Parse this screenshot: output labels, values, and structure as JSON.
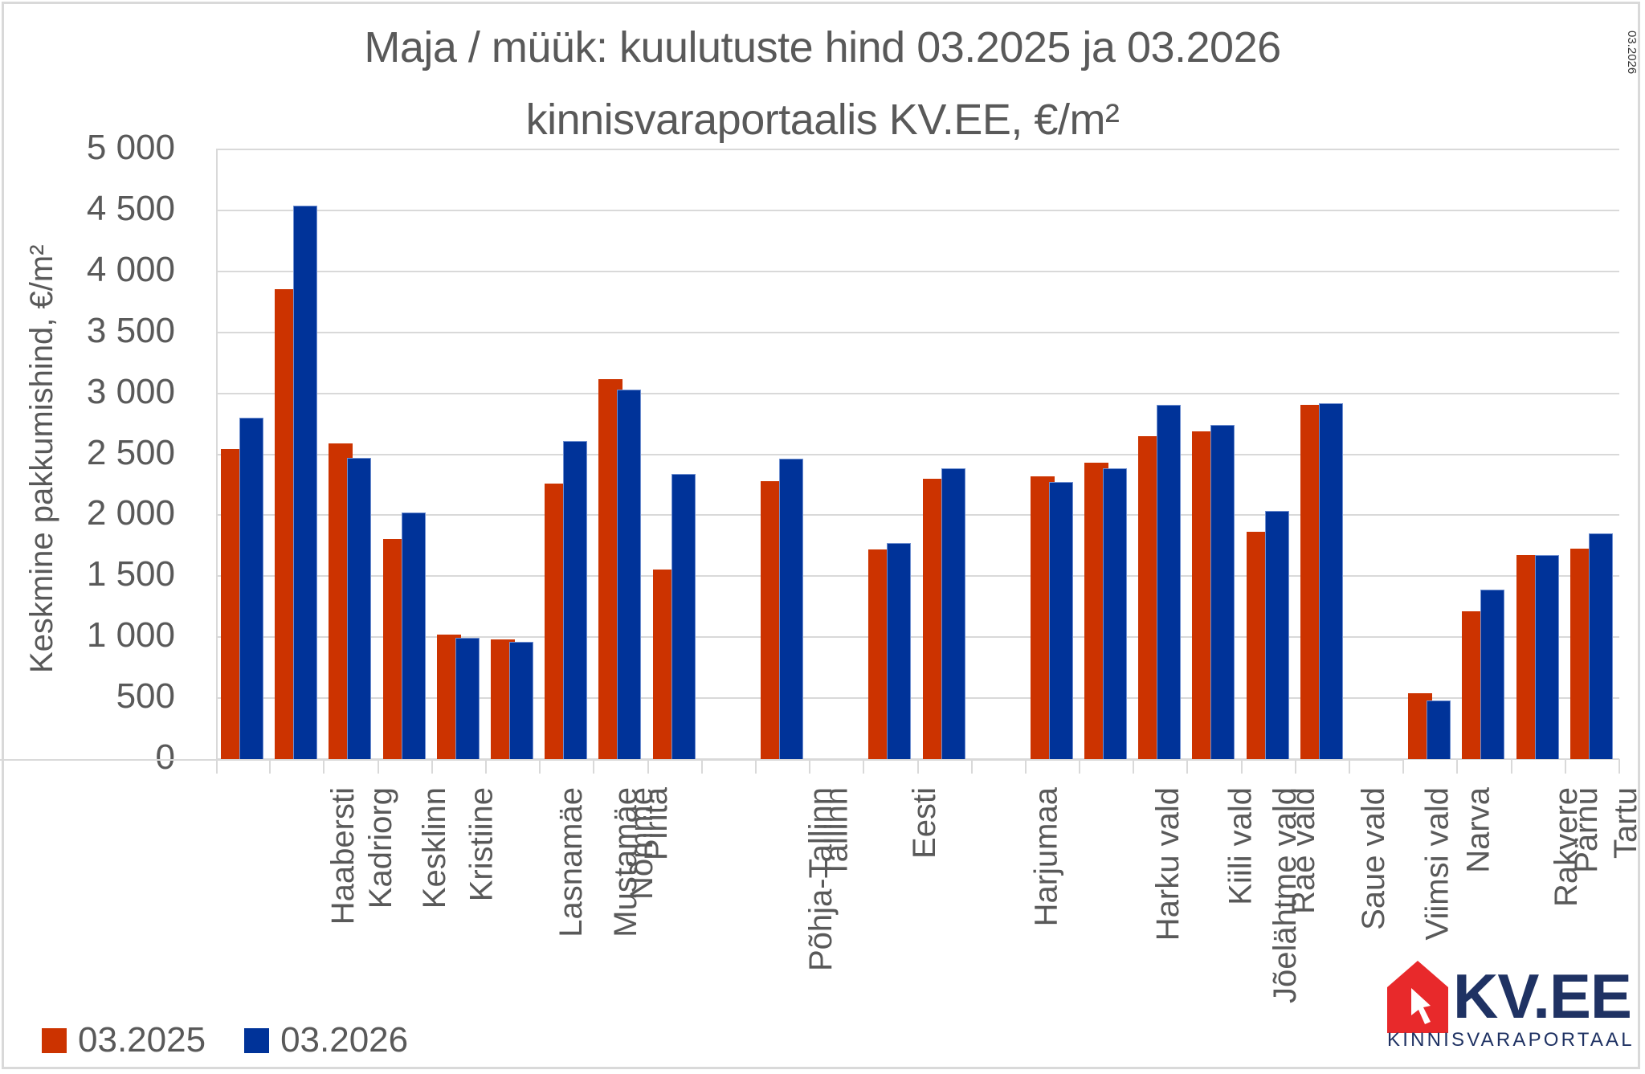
{
  "title": {
    "line1": "Maja / müük: kuulutuste hind 03.2025 ja 03.2026",
    "line2": "kinnisvaraportaalis KV.EE, €/m²"
  },
  "side_date": "03.2026",
  "y_axis": {
    "title": "Keskmine pakkumishind, €/m²",
    "ticks": [
      "5 000",
      "4 500",
      "4 000",
      "3 500",
      "3 000",
      "2 500",
      "2 000",
      "1 500",
      "1 000",
      "500",
      "0"
    ]
  },
  "legend": {
    "items": [
      {
        "label": "03.2025",
        "color": "#cc3300"
      },
      {
        "label": "03.2026",
        "color": "#003399"
      }
    ]
  },
  "logo": {
    "brand": "KV.EE",
    "tagline": "KINNISVARAPORTAAL",
    "house_color": "#e8292b",
    "text_color": "#1f3263"
  },
  "chart_data": {
    "type": "bar",
    "title": "Maja / müük: kuulutuste hind 03.2025 ja 03.2026 kinnisvaraportaalis KV.EE, €/m²",
    "xlabel": "",
    "ylabel": "Keskmine pakkumishind, €/m²",
    "ylim": [
      0,
      5000
    ],
    "grid": true,
    "legend_position": "bottom-left",
    "categories": [
      "Haabersti",
      "Kadriorg",
      "Kesklinn",
      "Kristiine",
      "Lasnamäe",
      "Mustamäe",
      "Nõmme",
      "Pirita",
      "Põhja-Tallinn",
      "",
      "Tallinn",
      "",
      "Eesti",
      "Harjumaa",
      "",
      "Harku vald",
      "Jõelähtme vald",
      "Kiili vald",
      "Rae vald",
      "Saue vald",
      "Viimsi vald",
      "",
      "Narva",
      "Rakvere",
      "Pärnu",
      "Tartu"
    ],
    "series": [
      {
        "name": "03.2025",
        "color": "#cc3300",
        "values": [
          2545,
          3852,
          2589,
          1802,
          1019,
          982,
          2262,
          3119,
          1553,
          null,
          2278,
          null,
          1721,
          2301,
          null,
          2322,
          2431,
          2650,
          2687,
          1867,
          2906,
          null,
          540,
          1212,
          1673,
          1728
        ]
      },
      {
        "name": "03.2026",
        "color": "#003399",
        "values": [
          2798,
          4541,
          2469,
          2024,
          996,
          961,
          2606,
          3032,
          2341,
          null,
          2465,
          null,
          1770,
          2387,
          null,
          2273,
          2382,
          2902,
          2742,
          2036,
          2920,
          null,
          479,
          1390,
          1673,
          1851
        ]
      }
    ]
  }
}
